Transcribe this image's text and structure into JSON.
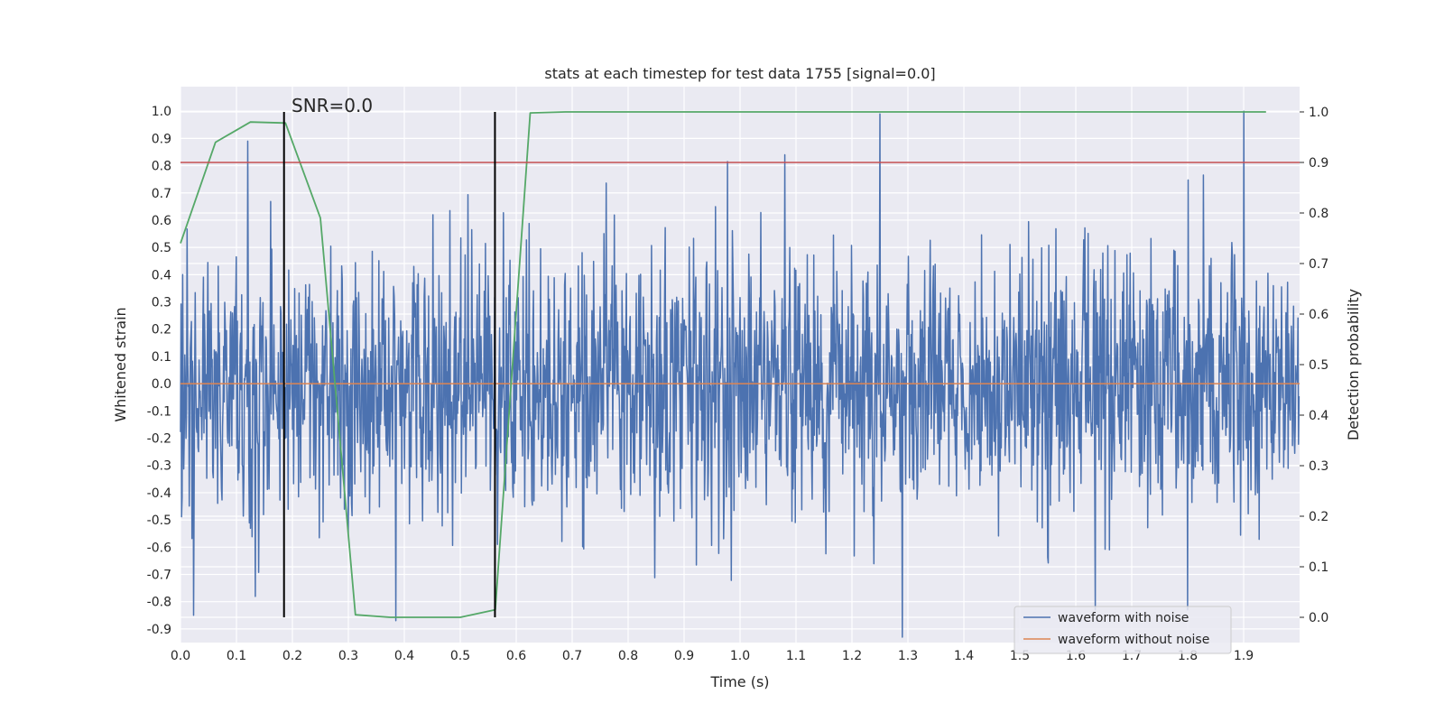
{
  "chart_data": {
    "type": "line",
    "title": "stats at each timestep for test data 1755 [signal=0.0]",
    "xlabel": "Time (s)",
    "ylabel": "Whitened strain",
    "y2label": "Detection probability",
    "annotation": "SNR=0.0",
    "xlim": [
      0.0,
      2.0
    ],
    "ylim": [
      -0.95,
      1.09
    ],
    "y2lim": [
      -0.05,
      1.05
    ],
    "x_ticks": [
      "0.0",
      "0.1",
      "0.2",
      "0.3",
      "0.4",
      "0.5",
      "0.6",
      "0.7",
      "0.8",
      "0.9",
      "1.0",
      "1.1",
      "1.2",
      "1.3",
      "1.4",
      "1.5",
      "1.6",
      "1.7",
      "1.8",
      "1.9"
    ],
    "y_ticks": [
      "-0.9",
      "-0.8",
      "-0.7",
      "-0.6",
      "-0.5",
      "-0.4",
      "-0.3",
      "-0.2",
      "-0.1",
      "0.0",
      "0.1",
      "0.2",
      "0.3",
      "0.4",
      "0.5",
      "0.6",
      "0.7",
      "0.8",
      "0.9",
      "1.0"
    ],
    "y2_ticks": [
      "0.0",
      "0.1",
      "0.2",
      "0.3",
      "0.4",
      "0.5",
      "0.6",
      "0.7",
      "0.8",
      "0.9",
      "1.0"
    ],
    "threshold_value": 0.9,
    "window_markers_x": [
      0.185,
      0.562
    ],
    "series": [
      {
        "name": "waveform with noise",
        "color": "#4c72b0",
        "axis": "left",
        "kind": "noise",
        "n_points": 2048,
        "amplitude_std": 0.3,
        "spikes": [
          {
            "x": 0.12,
            "y": 0.89
          },
          {
            "x": 1.25,
            "y": 0.99
          },
          {
            "x": 1.9,
            "y": 1.0
          },
          {
            "x": 1.08,
            "y": 0.84
          },
          {
            "x": 0.023,
            "y": -0.85
          },
          {
            "x": 0.385,
            "y": -0.87
          },
          {
            "x": 1.635,
            "y": -0.83
          },
          {
            "x": 1.8,
            "y": -0.83
          }
        ]
      },
      {
        "name": "waveform without noise",
        "color": "#dd8452",
        "axis": "left",
        "kind": "flat",
        "value": 0.0
      },
      {
        "name": "detection probability",
        "color": "#55a868",
        "axis": "right",
        "x": [
          0.0,
          0.0625,
          0.125,
          0.1875,
          0.25,
          0.3125,
          0.375,
          0.4375,
          0.5,
          0.5625,
          0.625,
          0.6875,
          1.94
        ],
        "values": [
          0.74,
          0.94,
          0.98,
          0.978,
          0.79,
          0.005,
          0.0,
          0.0,
          0.0,
          0.015,
          0.998,
          1.0,
          1.0
        ]
      },
      {
        "name": "threshold",
        "color": "#c44e52",
        "axis": "right",
        "kind": "flat",
        "value": 0.9
      }
    ],
    "legend": {
      "position": "bottom-right",
      "entries": [
        "waveform with noise",
        "waveform without noise"
      ]
    }
  }
}
